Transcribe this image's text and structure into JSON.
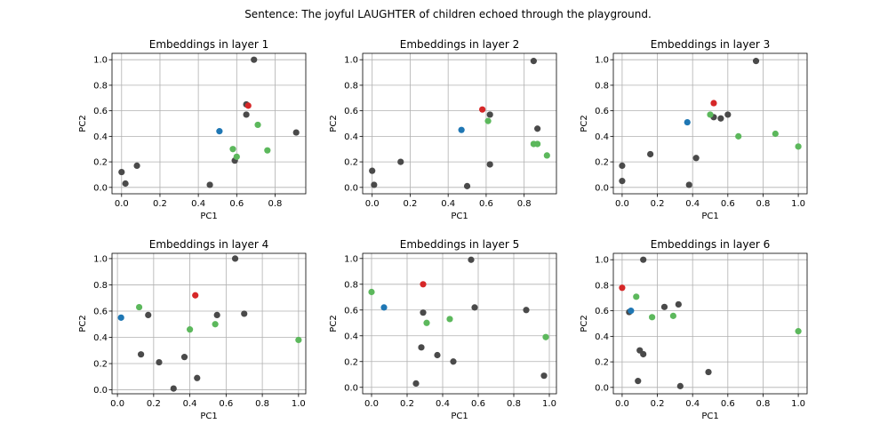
{
  "figure": {
    "suptitle": "Sentence: The joyful LAUGHTER of children echoed through the playground."
  },
  "colors": {
    "context": "#4a4a4a",
    "target": "#d62728",
    "related": "#5cb85c",
    "reference": "#1f77b4"
  },
  "chart_data": [
    {
      "type": "scatter",
      "title": "Embeddings in layer 1",
      "xlabel": "PC1",
      "ylabel": "PC2",
      "xlim": [
        -0.05,
        0.96
      ],
      "ylim": [
        -0.05,
        1.05
      ],
      "xticks": [
        "0.0",
        "0.2",
        "0.4",
        "0.6",
        "0.8"
      ],
      "yticks": [
        "0.0",
        "0.2",
        "0.4",
        "0.6",
        "0.8",
        "1.0"
      ],
      "grid": true,
      "series": [
        {
          "role": "context",
          "x": [
            0.0,
            0.02,
            0.08,
            0.46,
            0.59,
            0.65,
            0.65,
            0.69,
            0.91
          ],
          "y": [
            0.12,
            0.03,
            0.17,
            0.02,
            0.21,
            0.57,
            0.65,
            1.0,
            0.43
          ]
        },
        {
          "role": "reference",
          "x": [
            0.51
          ],
          "y": [
            0.44
          ]
        },
        {
          "role": "related",
          "x": [
            0.58,
            0.6,
            0.71,
            0.76
          ],
          "y": [
            0.3,
            0.24,
            0.49,
            0.29
          ]
        },
        {
          "role": "target",
          "x": [
            0.66
          ],
          "y": [
            0.64
          ]
        }
      ]
    },
    {
      "type": "scatter",
      "title": "Embeddings in layer 2",
      "xlabel": "PC1",
      "ylabel": "PC2",
      "xlim": [
        -0.05,
        0.97
      ],
      "ylim": [
        -0.05,
        1.05
      ],
      "xticks": [
        "0.0",
        "0.2",
        "0.4",
        "0.6",
        "0.8"
      ],
      "yticks": [
        "0.0",
        "0.2",
        "0.4",
        "0.6",
        "0.8",
        "1.0"
      ],
      "grid": true,
      "series": [
        {
          "role": "context",
          "x": [
            0.0,
            0.01,
            0.15,
            0.5,
            0.62,
            0.62,
            0.85,
            0.87
          ],
          "y": [
            0.13,
            0.02,
            0.2,
            0.01,
            0.18,
            0.57,
            0.99,
            0.46
          ]
        },
        {
          "role": "reference",
          "x": [
            0.47
          ],
          "y": [
            0.45
          ]
        },
        {
          "role": "related",
          "x": [
            0.61,
            0.85,
            0.87,
            0.92
          ],
          "y": [
            0.52,
            0.34,
            0.34,
            0.25
          ]
        },
        {
          "role": "target",
          "x": [
            0.58
          ],
          "y": [
            0.61
          ]
        }
      ]
    },
    {
      "type": "scatter",
      "title": "Embeddings in layer 3",
      "xlabel": "PC1",
      "ylabel": "PC2",
      "xlim": [
        -0.05,
        1.05
      ],
      "ylim": [
        -0.05,
        1.05
      ],
      "xticks": [
        "0.0",
        "0.2",
        "0.4",
        "0.6",
        "0.8",
        "1.0"
      ],
      "yticks": [
        "0.0",
        "0.2",
        "0.4",
        "0.6",
        "0.8",
        "1.0"
      ],
      "grid": true,
      "series": [
        {
          "role": "context",
          "x": [
            0.0,
            0.0,
            0.16,
            0.38,
            0.42,
            0.52,
            0.56,
            0.6,
            0.76
          ],
          "y": [
            0.17,
            0.05,
            0.26,
            0.02,
            0.23,
            0.55,
            0.54,
            0.57,
            0.99
          ]
        },
        {
          "role": "reference",
          "x": [
            0.37
          ],
          "y": [
            0.51
          ]
        },
        {
          "role": "related",
          "x": [
            0.5,
            0.66,
            0.87,
            1.0
          ],
          "y": [
            0.57,
            0.4,
            0.42,
            0.32
          ]
        },
        {
          "role": "target",
          "x": [
            0.52
          ],
          "y": [
            0.66
          ]
        }
      ]
    },
    {
      "type": "scatter",
      "title": "Embeddings in layer 4",
      "xlabel": "PC1",
      "ylabel": "PC2",
      "xlim": [
        -0.03,
        1.04
      ],
      "ylim": [
        -0.03,
        1.04
      ],
      "xticks": [
        "0.0",
        "0.2",
        "0.4",
        "0.6",
        "0.8",
        "1.0"
      ],
      "yticks": [
        "0.0",
        "0.2",
        "0.4",
        "0.6",
        "0.8",
        "1.0"
      ],
      "grid": true,
      "series": [
        {
          "role": "context",
          "x": [
            0.13,
            0.17,
            0.23,
            0.31,
            0.37,
            0.44,
            0.55,
            0.65,
            0.7
          ],
          "y": [
            0.27,
            0.57,
            0.21,
            0.01,
            0.25,
            0.09,
            0.57,
            1.0,
            0.58
          ]
        },
        {
          "role": "reference",
          "x": [
            0.02
          ],
          "y": [
            0.55
          ]
        },
        {
          "role": "related",
          "x": [
            0.12,
            0.4,
            0.54,
            1.0
          ],
          "y": [
            0.63,
            0.46,
            0.5,
            0.38
          ]
        },
        {
          "role": "target",
          "x": [
            0.43
          ],
          "y": [
            0.72
          ]
        }
      ]
    },
    {
      "type": "scatter",
      "title": "Embeddings in layer 5",
      "xlabel": "PC1",
      "ylabel": "PC2",
      "xlim": [
        -0.05,
        1.04
      ],
      "ylim": [
        -0.05,
        1.04
      ],
      "xticks": [
        "0.0",
        "0.2",
        "0.4",
        "0.6",
        "0.8",
        "1.0"
      ],
      "yticks": [
        "0.0",
        "0.2",
        "0.4",
        "0.6",
        "0.8",
        "1.0"
      ],
      "grid": true,
      "series": [
        {
          "role": "context",
          "x": [
            0.25,
            0.28,
            0.29,
            0.37,
            0.46,
            0.56,
            0.58,
            0.87,
            0.97
          ],
          "y": [
            0.03,
            0.31,
            0.58,
            0.25,
            0.2,
            0.99,
            0.62,
            0.6,
            0.09
          ]
        },
        {
          "role": "reference",
          "x": [
            0.07
          ],
          "y": [
            0.62
          ]
        },
        {
          "role": "related",
          "x": [
            0.0,
            0.31,
            0.44,
            0.98
          ],
          "y": [
            0.74,
            0.5,
            0.53,
            0.39
          ]
        },
        {
          "role": "target",
          "x": [
            0.29
          ],
          "y": [
            0.8
          ]
        }
      ]
    },
    {
      "type": "scatter",
      "title": "Embeddings in layer 6",
      "xlabel": "PC1",
      "ylabel": "PC2",
      "xlim": [
        -0.05,
        1.05
      ],
      "ylim": [
        -0.05,
        1.05
      ],
      "xticks": [
        "0.0",
        "0.2",
        "0.4",
        "0.6",
        "0.8",
        "1.0"
      ],
      "yticks": [
        "0.0",
        "0.2",
        "0.4",
        "0.6",
        "0.8",
        "1.0"
      ],
      "grid": true,
      "series": [
        {
          "role": "context",
          "x": [
            0.04,
            0.09,
            0.1,
            0.12,
            0.12,
            0.24,
            0.32,
            0.33,
            0.49
          ],
          "y": [
            0.59,
            0.05,
            0.29,
            0.26,
            1.0,
            0.63,
            0.65,
            0.01,
            0.12
          ]
        },
        {
          "role": "reference",
          "x": [
            0.05
          ],
          "y": [
            0.6
          ]
        },
        {
          "role": "related",
          "x": [
            0.08,
            0.17,
            0.29,
            1.0
          ],
          "y": [
            0.71,
            0.55,
            0.56,
            0.44
          ]
        },
        {
          "role": "target",
          "x": [
            0.0
          ],
          "y": [
            0.78
          ]
        }
      ]
    }
  ]
}
